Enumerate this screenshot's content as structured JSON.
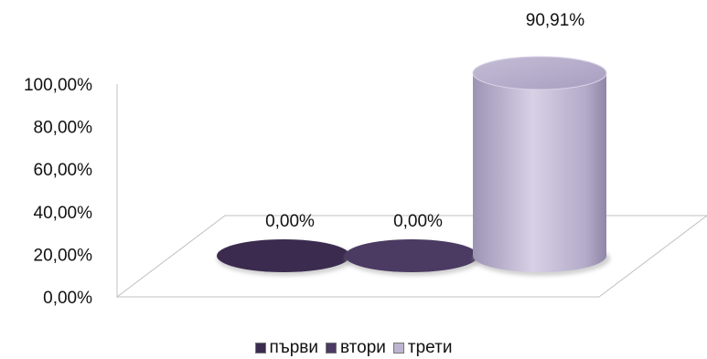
{
  "chart_data": {
    "type": "bar",
    "categories": [
      "първи",
      "втори",
      "трети"
    ],
    "values": [
      0.0,
      0.0,
      90.91
    ],
    "data_labels": [
      "0,00%",
      "0,00%",
      "90,91%"
    ],
    "ylim": [
      0,
      100
    ],
    "y_ticks": [
      {
        "value": 0,
        "label": "0,00%"
      },
      {
        "value": 20,
        "label": "20,00%"
      },
      {
        "value": 40,
        "label": "40,00%"
      },
      {
        "value": 60,
        "label": "60,00%"
      },
      {
        "value": 80,
        "label": "80,00%"
      },
      {
        "value": 100,
        "label": "100,00%"
      }
    ],
    "colors": [
      "#3a2b4f",
      "#4b3a62",
      "#bcb4d0"
    ],
    "legend": {
      "placement": "bottom"
    },
    "grid": false
  }
}
